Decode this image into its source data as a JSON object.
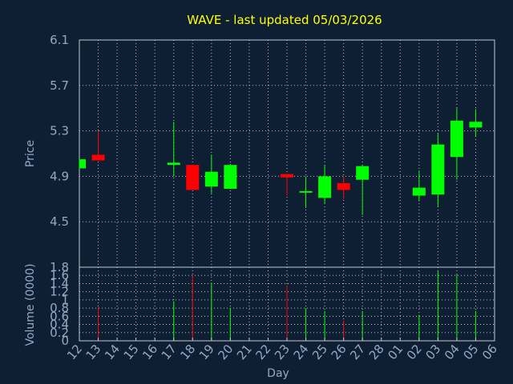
{
  "title": "WAVE - last updated 05/03/2026",
  "colors": {
    "background": "#0f1f33",
    "title": "#ffff00",
    "axis_text": "#93a9c4",
    "up": "#00ff00",
    "down": "#ff0000"
  },
  "chart_data": [
    {
      "type": "candlestick",
      "ylabel": "Price",
      "ylim": [
        4.1,
        6.1
      ],
      "yticks": [
        "6.1",
        "5.7",
        "5.3",
        "4.9",
        "4.5"
      ],
      "ytick_values": [
        6.1,
        5.7,
        5.3,
        4.9,
        4.5
      ],
      "grid": true,
      "candles": [
        {
          "day": "12",
          "open": 4.97,
          "close": 5.05,
          "high": 5.05,
          "low": 4.97
        },
        {
          "day": "13",
          "open": 5.09,
          "close": 5.04,
          "high": 5.3,
          "low": 5.04
        },
        {
          "day": "17",
          "open": 5.0,
          "close": 5.02,
          "high": 5.38,
          "low": 4.9
        },
        {
          "day": "18",
          "open": 5.0,
          "close": 4.78,
          "high": 5.0,
          "low": 4.78
        },
        {
          "day": "19",
          "open": 4.81,
          "close": 4.94,
          "high": 5.09,
          "low": 4.75
        },
        {
          "day": "20",
          "open": 4.79,
          "close": 5.0,
          "high": 5.01,
          "low": 4.79
        },
        {
          "day": "23",
          "open": 4.92,
          "close": 4.89,
          "high": 4.92,
          "low": 4.73
        },
        {
          "day": "24",
          "open": 4.76,
          "close": 4.77,
          "high": 4.9,
          "low": 4.62
        },
        {
          "day": "25",
          "open": 4.71,
          "close": 4.9,
          "high": 5.0,
          "low": 4.66
        },
        {
          "day": "26",
          "open": 4.84,
          "close": 4.78,
          "high": 4.9,
          "low": 4.7
        },
        {
          "day": "27",
          "open": 4.87,
          "close": 4.99,
          "high": 5.0,
          "low": 4.56
        },
        {
          "day": "02",
          "open": 4.73,
          "close": 4.8,
          "high": 4.95,
          "low": 4.68
        },
        {
          "day": "03",
          "open": 4.74,
          "close": 5.18,
          "high": 5.28,
          "low": 4.63
        },
        {
          "day": "04",
          "open": 5.07,
          "close": 5.39,
          "high": 5.5,
          "low": 4.87
        },
        {
          "day": "05",
          "open": 5.33,
          "close": 5.38,
          "high": 5.49,
          "low": 5.25
        }
      ]
    },
    {
      "type": "bar",
      "ylabel": "Volume (0000)",
      "ylim": [
        0,
        1.8
      ],
      "yticks": [
        "1.8",
        "1.6",
        "1.4",
        "1.2",
        "1",
        "0.8",
        "0.6",
        "0.4",
        "0.2",
        "0"
      ],
      "ytick_values": [
        1.8,
        1.6,
        1.4,
        1.2,
        1.0,
        0.8,
        0.6,
        0.4,
        0.2,
        0.0
      ],
      "xlabel": "Day",
      "grid": true,
      "bars": [
        {
          "day": "13",
          "value": 0.82,
          "direction": "down"
        },
        {
          "day": "17",
          "value": 0.97,
          "direction": "up"
        },
        {
          "day": "18",
          "value": 1.6,
          "direction": "down"
        },
        {
          "day": "19",
          "value": 1.42,
          "direction": "up"
        },
        {
          "day": "20",
          "value": 0.8,
          "direction": "up"
        },
        {
          "day": "23",
          "value": 1.35,
          "direction": "down"
        },
        {
          "day": "24",
          "value": 0.8,
          "direction": "up"
        },
        {
          "day": "25",
          "value": 0.73,
          "direction": "up"
        },
        {
          "day": "26",
          "value": 0.5,
          "direction": "down"
        },
        {
          "day": "27",
          "value": 0.73,
          "direction": "up"
        },
        {
          "day": "02",
          "value": 0.63,
          "direction": "up"
        },
        {
          "day": "03",
          "value": 1.7,
          "direction": "up"
        },
        {
          "day": "04",
          "value": 1.62,
          "direction": "up"
        },
        {
          "day": "05",
          "value": 0.73,
          "direction": "up"
        }
      ]
    }
  ],
  "x_days": [
    "12",
    "13",
    "14",
    "15",
    "16",
    "17",
    "18",
    "19",
    "20",
    "21",
    "22",
    "23",
    "24",
    "25",
    "26",
    "27",
    "28",
    "01",
    "02",
    "03",
    "04",
    "05",
    "06"
  ]
}
